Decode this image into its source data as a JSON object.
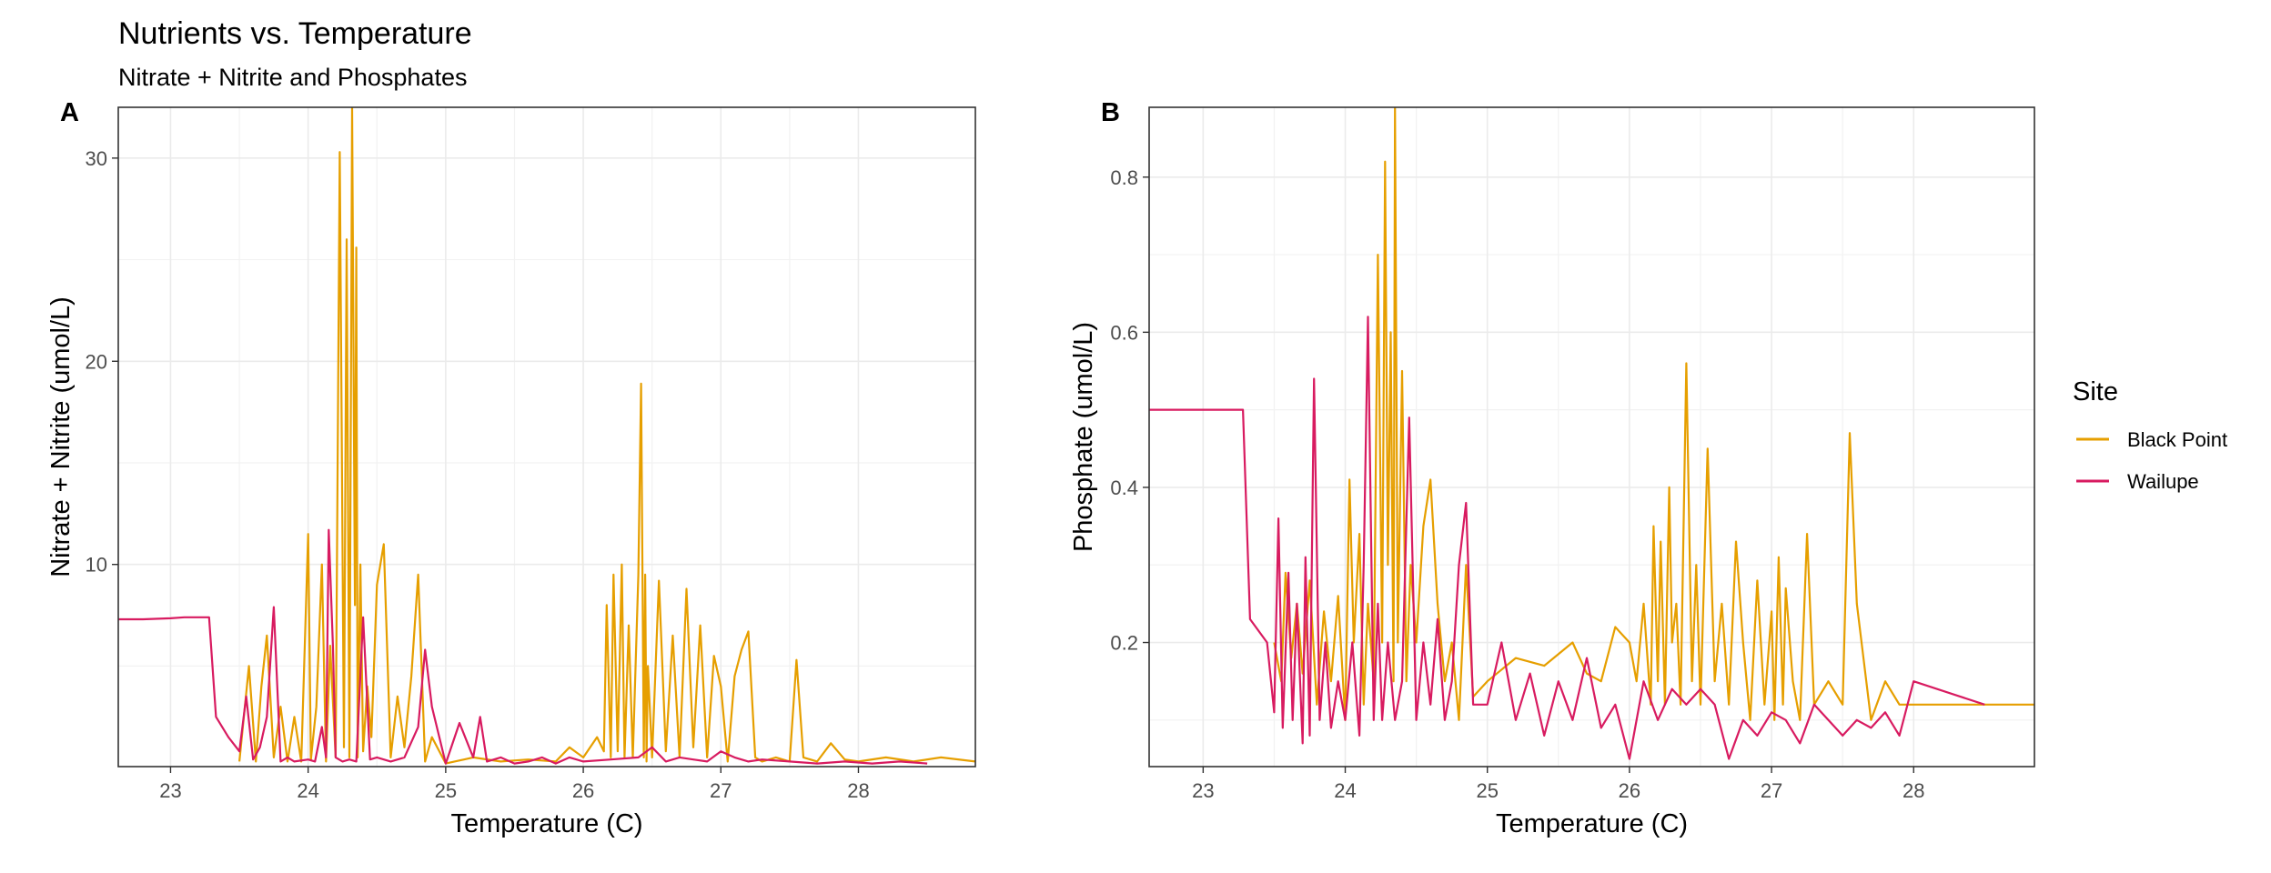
{
  "figure": {
    "title": "Nutrients vs. Temperature",
    "subtitle": "Nitrate + Nitrite and Phosphates"
  },
  "legend": {
    "title": "Site",
    "entries": [
      {
        "name": "Black Point",
        "color": "#E69F00"
      },
      {
        "name": "Wailupe",
        "color": "#D81B60"
      }
    ]
  },
  "chart_data": [
    {
      "type": "line",
      "tag": "A",
      "title": "",
      "xlabel": "Temperature (C)",
      "ylabel": "Nitrate + Nitrite (umol/L)",
      "xlim": [
        22.62,
        28.85
      ],
      "ylim": [
        0.05,
        32.5
      ],
      "xticks": [
        23,
        24,
        25,
        26,
        27,
        28
      ],
      "yticks": [
        10,
        20,
        30
      ],
      "grid": true,
      "series": [
        {
          "name": "Black Point",
          "color": "#E69F00",
          "x": [
            23.5,
            23.57,
            23.62,
            23.66,
            23.7,
            23.75,
            23.8,
            23.85,
            23.9,
            23.95,
            24.0,
            24.02,
            24.06,
            24.1,
            24.13,
            24.16,
            24.2,
            24.23,
            24.26,
            24.28,
            24.3,
            24.32,
            24.34,
            24.35,
            24.36,
            24.38,
            24.4,
            24.43,
            24.46,
            24.5,
            24.55,
            24.6,
            24.65,
            24.7,
            24.75,
            24.8,
            24.85,
            24.9,
            25.0,
            25.2,
            25.4,
            25.6,
            25.8,
            25.9,
            26.0,
            26.1,
            26.15,
            26.17,
            26.2,
            26.22,
            26.25,
            26.28,
            26.3,
            26.33,
            26.36,
            26.4,
            26.42,
            26.44,
            26.45,
            26.46,
            26.47,
            26.5,
            26.55,
            26.6,
            26.65,
            26.7,
            26.75,
            26.8,
            26.85,
            26.9,
            26.95,
            27.0,
            27.05,
            27.1,
            27.15,
            27.2,
            27.25,
            27.3,
            27.4,
            27.5,
            27.55,
            27.6,
            27.7,
            27.8,
            27.9,
            28.0,
            28.2,
            28.4,
            28.6,
            28.85
          ],
          "y": [
            0.3,
            5.0,
            0.3,
            4.0,
            6.5,
            0.5,
            3.0,
            0.3,
            2.5,
            0.3,
            11.5,
            0.4,
            3.0,
            10.0,
            0.3,
            6.0,
            0.5,
            30.3,
            1.0,
            26.0,
            0.5,
            32.5,
            8.0,
            25.6,
            0.5,
            10.0,
            0.8,
            4.0,
            1.5,
            9.0,
            11.0,
            0.5,
            3.5,
            1.0,
            4.5,
            9.5,
            0.3,
            1.5,
            0.2,
            0.5,
            0.3,
            0.4,
            0.3,
            1.0,
            0.5,
            1.5,
            0.8,
            8.0,
            0.5,
            9.5,
            0.8,
            10.0,
            0.5,
            7.0,
            0.5,
            9.5,
            18.9,
            0.5,
            9.5,
            0.3,
            5.0,
            0.5,
            9.2,
            0.8,
            6.5,
            0.5,
            8.8,
            1.0,
            7.0,
            0.5,
            5.5,
            4.0,
            0.3,
            4.5,
            5.8,
            6.7,
            0.5,
            0.3,
            0.5,
            0.3,
            5.3,
            0.5,
            0.3,
            1.2,
            0.4,
            0.3,
            0.5,
            0.3,
            0.5,
            0.3
          ]
        },
        {
          "name": "Wailupe",
          "color": "#D81B60",
          "x": [
            22.62,
            22.8,
            23.0,
            23.1,
            23.28,
            23.33,
            23.42,
            23.5,
            23.55,
            23.6,
            23.65,
            23.7,
            23.75,
            23.8,
            23.85,
            23.9,
            24.0,
            24.05,
            24.1,
            24.13,
            24.15,
            24.18,
            24.2,
            24.25,
            24.3,
            24.35,
            24.4,
            24.45,
            24.5,
            24.6,
            24.7,
            24.8,
            24.85,
            24.9,
            25.0,
            25.1,
            25.2,
            25.25,
            25.3,
            25.4,
            25.5,
            25.6,
            25.7,
            25.8,
            25.9,
            26.0,
            26.2,
            26.4,
            26.5,
            26.6,
            26.7,
            26.8,
            26.9,
            27.0,
            27.1,
            27.2,
            27.3,
            27.5,
            27.7,
            27.9,
            28.1,
            28.3,
            28.5
          ],
          "y": [
            7.3,
            7.3,
            7.35,
            7.4,
            7.4,
            2.5,
            1.5,
            0.8,
            3.5,
            0.4,
            1.0,
            2.5,
            7.9,
            0.3,
            0.5,
            0.3,
            0.4,
            0.3,
            2.0,
            0.5,
            11.7,
            6.0,
            0.5,
            0.3,
            0.4,
            0.3,
            7.4,
            0.4,
            0.5,
            0.3,
            0.5,
            2.0,
            5.8,
            3.0,
            0.2,
            2.2,
            0.5,
            2.5,
            0.3,
            0.5,
            0.2,
            0.3,
            0.5,
            0.2,
            0.5,
            0.3,
            0.4,
            0.5,
            1.0,
            0.3,
            0.5,
            0.4,
            0.3,
            0.8,
            0.5,
            0.3,
            0.4,
            0.3,
            0.2,
            0.3,
            0.2,
            0.3,
            0.2
          ]
        }
      ]
    },
    {
      "type": "line",
      "tag": "B",
      "title": "",
      "xlabel": "Temperature (C)",
      "ylabel": "Phosphate (umol/L)",
      "xlim": [
        22.62,
        28.85
      ],
      "ylim": [
        0.04,
        0.89
      ],
      "xticks": [
        23,
        24,
        25,
        26,
        27,
        28
      ],
      "yticks": [
        0.2,
        0.4,
        0.6,
        0.8
      ],
      "grid": true,
      "series": [
        {
          "name": "Black Point",
          "color": "#E69F00",
          "x": [
            23.5,
            23.55,
            23.58,
            23.62,
            23.66,
            23.7,
            23.75,
            23.8,
            23.85,
            23.9,
            23.95,
            24.0,
            24.03,
            24.06,
            24.1,
            24.13,
            24.16,
            24.2,
            24.23,
            24.26,
            24.28,
            24.3,
            24.32,
            24.34,
            24.35,
            24.37,
            24.4,
            24.43,
            24.46,
            24.5,
            24.55,
            24.6,
            24.65,
            24.7,
            24.75,
            24.8,
            24.85,
            24.9,
            25.0,
            25.2,
            25.4,
            25.6,
            25.7,
            25.8,
            25.9,
            26.0,
            26.05,
            26.1,
            26.15,
            26.17,
            26.2,
            26.22,
            26.25,
            26.28,
            26.3,
            26.33,
            26.36,
            26.4,
            26.44,
            26.47,
            26.5,
            26.55,
            26.6,
            26.65,
            26.7,
            26.75,
            26.8,
            26.85,
            26.9,
            26.95,
            27.0,
            27.02,
            27.05,
            27.08,
            27.1,
            27.15,
            27.2,
            27.25,
            27.3,
            27.4,
            27.5,
            27.55,
            27.6,
            27.7,
            27.8,
            27.9,
            28.0,
            28.3,
            28.85
          ],
          "y": [
            0.2,
            0.15,
            0.29,
            0.18,
            0.25,
            0.16,
            0.28,
            0.12,
            0.24,
            0.15,
            0.26,
            0.1,
            0.41,
            0.2,
            0.34,
            0.12,
            0.25,
            0.15,
            0.7,
            0.2,
            0.82,
            0.3,
            0.6,
            0.15,
            0.89,
            0.2,
            0.55,
            0.15,
            0.3,
            0.2,
            0.35,
            0.41,
            0.25,
            0.15,
            0.2,
            0.1,
            0.3,
            0.13,
            0.15,
            0.18,
            0.17,
            0.2,
            0.16,
            0.15,
            0.22,
            0.2,
            0.15,
            0.25,
            0.12,
            0.35,
            0.15,
            0.33,
            0.12,
            0.4,
            0.2,
            0.25,
            0.12,
            0.56,
            0.15,
            0.3,
            0.12,
            0.45,
            0.15,
            0.25,
            0.12,
            0.33,
            0.2,
            0.1,
            0.28,
            0.12,
            0.24,
            0.1,
            0.31,
            0.12,
            0.27,
            0.15,
            0.1,
            0.34,
            0.12,
            0.15,
            0.12,
            0.47,
            0.25,
            0.1,
            0.15,
            0.12,
            0.12,
            0.12,
            0.12
          ]
        },
        {
          "name": "Wailupe",
          "color": "#D81B60",
          "x": [
            22.62,
            22.9,
            23.1,
            23.28,
            23.33,
            23.45,
            23.5,
            23.53,
            23.56,
            23.6,
            23.63,
            23.66,
            23.7,
            23.72,
            23.75,
            23.78,
            23.82,
            23.86,
            23.9,
            23.95,
            24.0,
            24.05,
            24.1,
            24.13,
            24.16,
            24.2,
            24.23,
            24.26,
            24.3,
            24.35,
            24.4,
            24.45,
            24.5,
            24.55,
            24.6,
            24.65,
            24.7,
            24.75,
            24.8,
            24.85,
            24.9,
            25.0,
            25.1,
            25.2,
            25.3,
            25.4,
            25.5,
            25.6,
            25.7,
            25.8,
            25.9,
            26.0,
            26.1,
            26.2,
            26.3,
            26.4,
            26.5,
            26.6,
            26.7,
            26.8,
            26.9,
            27.0,
            27.1,
            27.2,
            27.3,
            27.4,
            27.5,
            27.6,
            27.7,
            27.8,
            27.9,
            28.0,
            28.5
          ],
          "y": [
            0.5,
            0.5,
            0.5,
            0.5,
            0.23,
            0.2,
            0.11,
            0.36,
            0.09,
            0.29,
            0.1,
            0.25,
            0.07,
            0.31,
            0.08,
            0.54,
            0.1,
            0.2,
            0.09,
            0.15,
            0.1,
            0.2,
            0.08,
            0.3,
            0.62,
            0.1,
            0.25,
            0.1,
            0.2,
            0.1,
            0.15,
            0.49,
            0.1,
            0.2,
            0.12,
            0.23,
            0.1,
            0.15,
            0.3,
            0.38,
            0.12,
            0.12,
            0.2,
            0.1,
            0.16,
            0.08,
            0.15,
            0.1,
            0.18,
            0.09,
            0.12,
            0.05,
            0.15,
            0.1,
            0.14,
            0.12,
            0.14,
            0.12,
            0.05,
            0.1,
            0.08,
            0.11,
            0.1,
            0.07,
            0.12,
            0.1,
            0.08,
            0.1,
            0.09,
            0.11,
            0.08,
            0.15,
            0.12
          ]
        }
      ]
    }
  ]
}
